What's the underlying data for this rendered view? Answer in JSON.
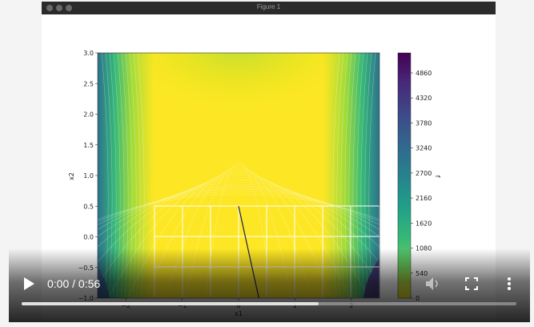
{
  "window": {
    "title": "Figure 1"
  },
  "player": {
    "time_display": "0:00 / 0:56",
    "progress_fraction": 0.6,
    "icons": [
      "play-icon",
      "volume-icon",
      "fullscreen-icon",
      "more-options-icon"
    ]
  },
  "chart_data": {
    "type": "heatmap",
    "title": "",
    "xlabel": "x1",
    "ylabel": "x2",
    "xlim": [
      -2.5,
      2.5
    ],
    "ylim": [
      -1.0,
      3.0
    ],
    "y_ticks": [
      "3.0",
      "2.5",
      "2.0",
      "1.5",
      "1.0",
      "0.5",
      "0.0",
      "−0.5",
      "−1.0"
    ],
    "x_ticks": [
      "−2",
      "−1",
      "0",
      "1",
      "2"
    ],
    "colorbar": {
      "label": "f",
      "ticks": [
        "4860",
        "4320",
        "3780",
        "3240",
        "2700",
        "2160",
        "1620",
        "1080",
        "540",
        "0"
      ],
      "colormap": "viridis_r"
    },
    "trajectory": {
      "x": [
        0.0,
        0.36
      ],
      "y": [
        0.5,
        -1.0
      ]
    },
    "grid_region": {
      "x": [
        -1.5,
        2.5
      ],
      "y": [
        -1.0,
        0.5
      ]
    },
    "colors": {
      "yellow": "#fde725",
      "yellow_green": "#b5de2b",
      "green": "#35b779",
      "teal": "#21918c",
      "blue": "#31688e",
      "indigo": "#443983",
      "purple": "#440154",
      "trajectory": "#1b1b5e"
    }
  }
}
